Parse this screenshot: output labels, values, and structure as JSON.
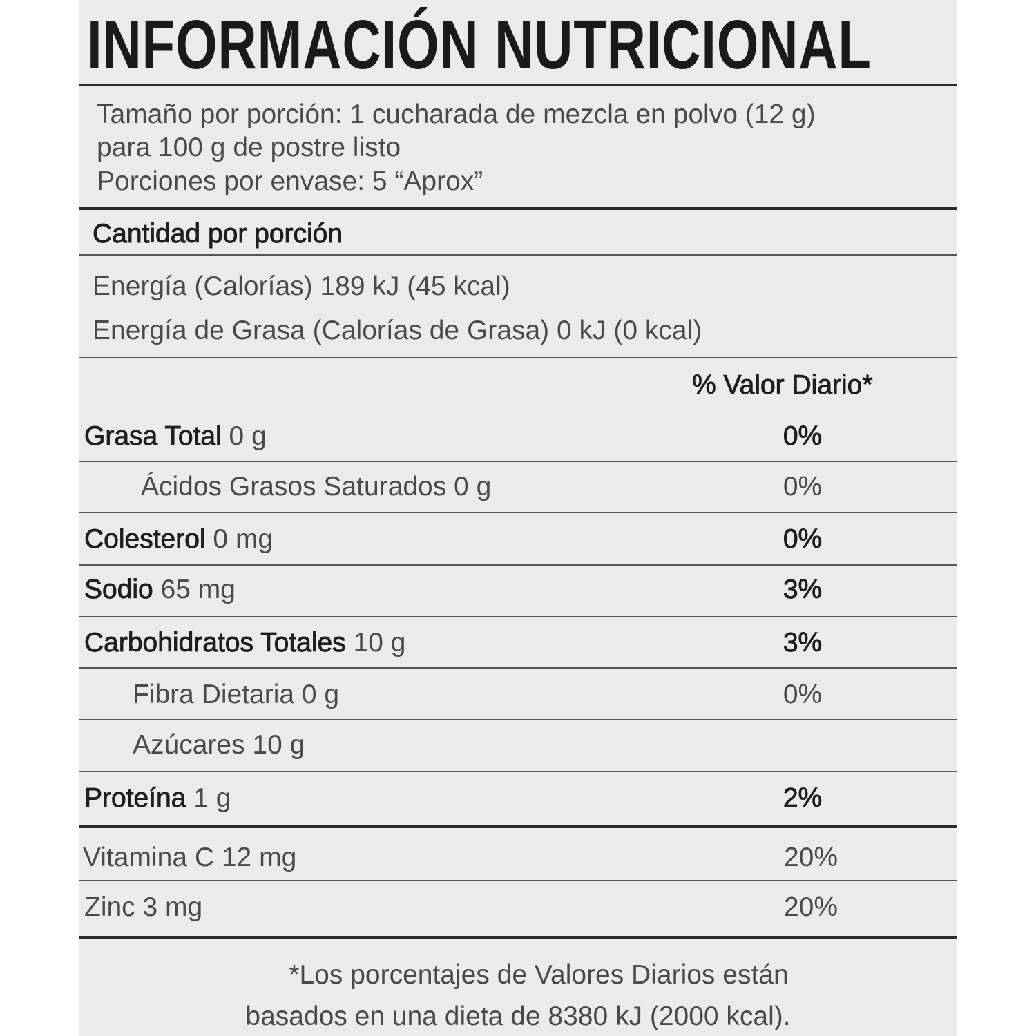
{
  "title": "INFORMACIÓN NUTRICIONAL",
  "serving": {
    "line1": "Tamaño por porción: 1 cucharada de mezcla en polvo (12 g)",
    "line2": "para 100 g de postre listo",
    "line3": "Porciones por envase: 5 “Aprox”"
  },
  "amount_header": "Cantidad por porción",
  "energy": "Energía (Calorías)  189 kJ (45 kcal)",
  "energy_fat": "Energía de Grasa  (Calorías de Grasa) 0 kJ (0 kcal)",
  "dv_header": "% Valor Diario*",
  "nutrients": [
    {
      "name": "Grasa Total",
      "amount": " 0 g",
      "dv": "0%"
    },
    {
      "name": "Ácidos Grasos Saturados 0 g",
      "dv": "0%"
    },
    {
      "name": "Colesterol",
      "amount": " 0 mg",
      "dv": "0%"
    },
    {
      "name": "Sodio",
      "amount": " 65 mg",
      "dv": "3%"
    },
    {
      "name": "Carbohidratos Totales",
      "amount": " 10 g",
      "dv": "3%"
    },
    {
      "name": "Fibra Dietaria 0 g",
      "dv": "0%"
    },
    {
      "name": "Azúcares 10 g"
    },
    {
      "name": "Proteína",
      "amount": " 1 g",
      "dv": "2%"
    },
    {
      "name": "Vitamina C 12 mg",
      "dv": "20%"
    },
    {
      "name": "Zinc 3 mg",
      "dv": "20%"
    }
  ],
  "footnote": {
    "line1": "*Los porcentajes de Valores Diarios están",
    "line2": "basados en una dieta de 8380 kJ (2000 kcal)."
  }
}
